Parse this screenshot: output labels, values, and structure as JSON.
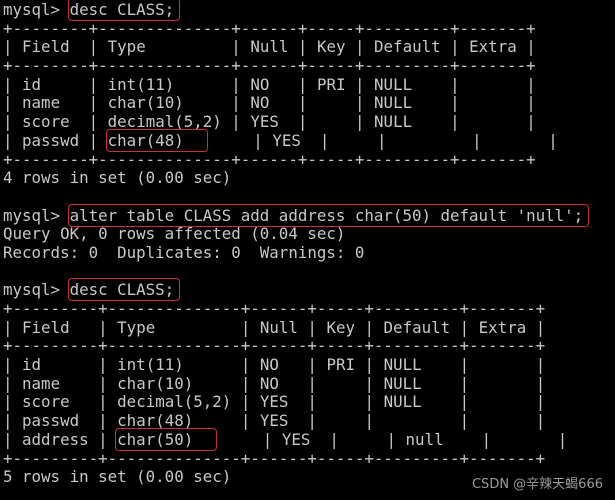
{
  "prompt": "mysql> ",
  "blocks": [
    {
      "type": "command",
      "text": "desc CLASS;",
      "highlighted": true
    },
    {
      "type": "table",
      "headers": [
        "Field",
        "Type",
        "Null",
        "Key",
        "Default",
        "Extra"
      ],
      "rows": [
        [
          "id",
          "int(11)",
          "NO",
          "PRI",
          "NULL",
          ""
        ],
        [
          "name",
          "char(10)",
          "NO",
          "",
          "NULL",
          ""
        ],
        [
          "score",
          "decimal(5,2)",
          "YES",
          "",
          "NULL",
          ""
        ],
        [
          "passwd",
          "char(48)",
          "YES",
          "",
          "",
          ""
        ]
      ],
      "highlight_cell": [
        3,
        1
      ]
    },
    {
      "type": "output",
      "text": "4 rows in set (0.00 sec)"
    },
    {
      "type": "blank"
    },
    {
      "type": "command",
      "text": "alter table CLASS add address char(50) default 'null';",
      "highlighted": true
    },
    {
      "type": "output",
      "text": "Query OK, 0 rows affected (0.04 sec)"
    },
    {
      "type": "output",
      "text": "Records: 0  Duplicates: 0  Warnings: 0"
    },
    {
      "type": "blank"
    },
    {
      "type": "command",
      "text": "desc CLASS;",
      "highlighted": true
    },
    {
      "type": "table",
      "headers": [
        "Field",
        "Type",
        "Null",
        "Key",
        "Default",
        "Extra"
      ],
      "rows": [
        [
          "id",
          "int(11)",
          "NO",
          "PRI",
          "NULL",
          ""
        ],
        [
          "name",
          "char(10)",
          "NO",
          "",
          "NULL",
          ""
        ],
        [
          "score",
          "decimal(5,2)",
          "YES",
          "",
          "NULL",
          ""
        ],
        [
          "passwd",
          "char(48)",
          "YES",
          "",
          "",
          ""
        ],
        [
          "address",
          "char(50)",
          "YES",
          "",
          "null",
          ""
        ]
      ],
      "highlight_cell": [
        4,
        1
      ]
    },
    {
      "type": "output",
      "text": "5 rows in set (0.00 sec)"
    }
  ],
  "watermark": "CSDN @辛辣天蝎666",
  "colors": {
    "text": "#c8c8c8",
    "background": "#000000",
    "highlight": "#c8323a"
  }
}
